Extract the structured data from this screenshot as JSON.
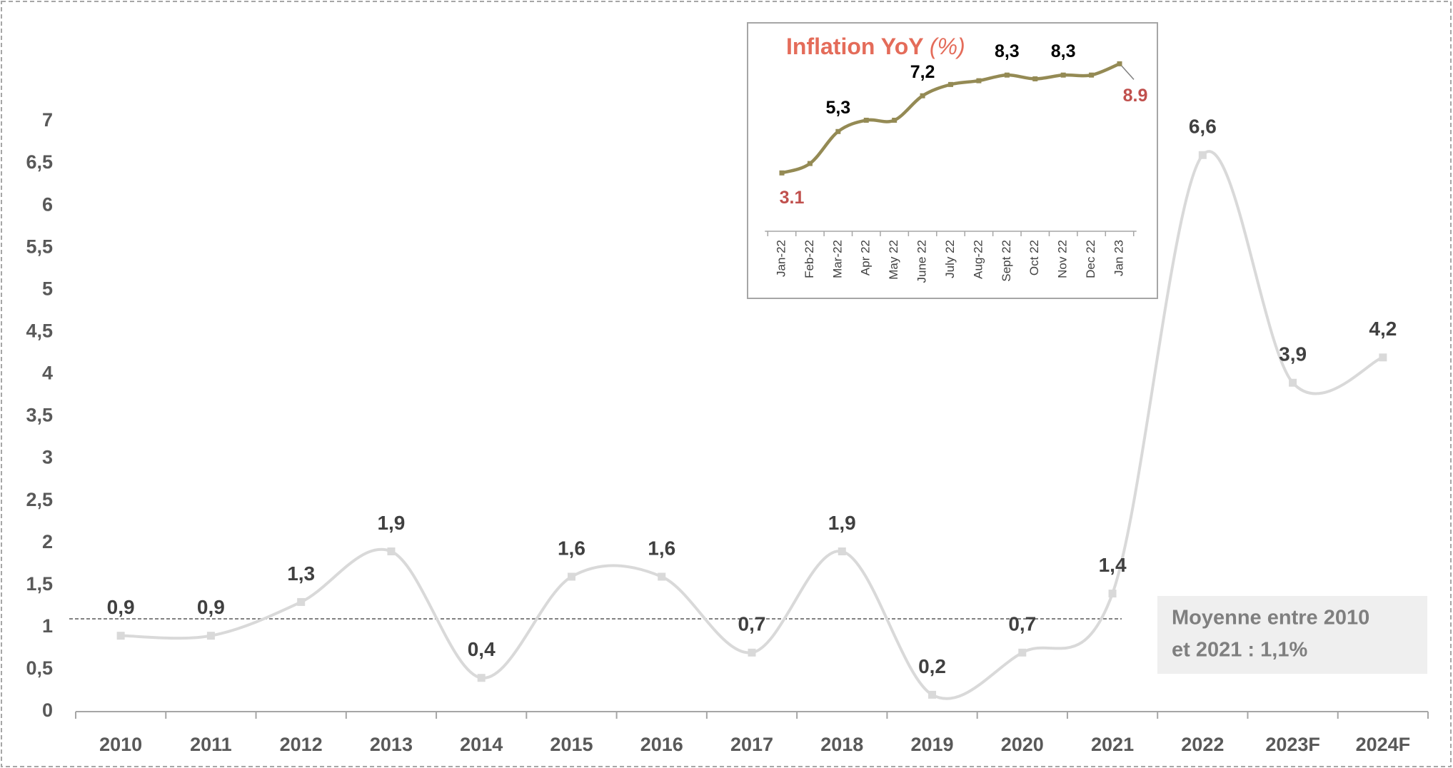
{
  "chart_data": [
    {
      "type": "line",
      "categories": [
        "2010",
        "2011",
        "2012",
        "2013",
        "2014",
        "2015",
        "2016",
        "2017",
        "2018",
        "2019",
        "2020",
        "2021",
        "2022",
        "2023F",
        "2024F"
      ],
      "values": [
        0.9,
        0.9,
        1.3,
        1.9,
        0.4,
        1.6,
        1.6,
        0.7,
        1.9,
        0.2,
        0.7,
        1.4,
        6.6,
        3.9,
        4.2
      ],
      "value_labels": [
        "0,9",
        "0,9",
        "1,3",
        "1,9",
        "0,4",
        "1,6",
        "1,6",
        "0,7",
        "1,9",
        "0,2",
        "0,7",
        "1,4",
        "6,6",
        "3,9",
        "4,2"
      ],
      "color": "#d9d9d9",
      "ylim": [
        0,
        7
      ],
      "yticks": [
        0,
        {
          "value": 0.5,
          "label": "0,5"
        },
        1,
        {
          "value": 1.5,
          "label": "1,5"
        },
        2,
        {
          "value": 2.5,
          "label": "2,5"
        },
        3,
        {
          "value": 3.5,
          "label": "3,5"
        },
        4,
        {
          "value": 4.5,
          "label": "4,5"
        },
        5,
        {
          "value": 5.5,
          "label": "5,5"
        },
        6,
        {
          "value": 6.5,
          "label": "6,5"
        },
        7
      ],
      "average": 1.1,
      "annotation": [
        "Moyenne entre  2010",
        "et 2021 : 1,1%"
      ]
    },
    {
      "type": "line",
      "title": "Inflation YoY",
      "title_unit": "(%)",
      "categories": [
        "Jan-22",
        "Feb-22",
        "Mar-22",
        "Apr 22",
        "May 22",
        "June 22",
        "July 22",
        "Aug-22",
        "Sept 22",
        "Oct 22",
        "Nov 22",
        "Dec 22",
        "Jan 23"
      ],
      "values": [
        3.1,
        3.6,
        5.3,
        5.9,
        5.9,
        7.2,
        7.8,
        8.0,
        8.3,
        8.1,
        8.3,
        8.3,
        8.9
      ],
      "value_labels": [
        "3.1",
        null,
        "5,3",
        null,
        null,
        "7,2",
        null,
        null,
        "8,3",
        null,
        "8,3",
        null,
        "8.9"
      ],
      "color": "#948a54",
      "ylim": [
        0,
        11
      ]
    }
  ]
}
